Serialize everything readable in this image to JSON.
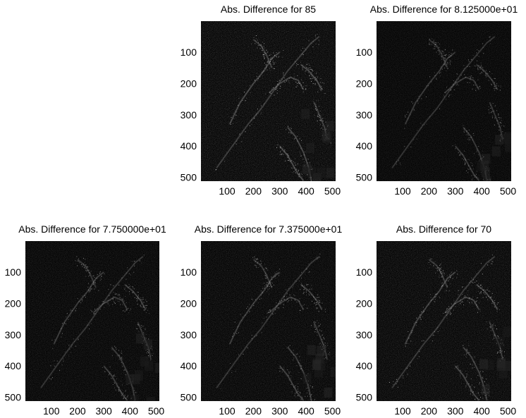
{
  "chart_data": [
    {
      "type": "heatmap",
      "title": "Abs. Difference for 85",
      "x_ticks": [
        100,
        200,
        300,
        400,
        500
      ],
      "y_ticks": [
        100,
        200,
        300,
        400,
        500
      ],
      "xlim": [
        1,
        512
      ],
      "ylim": [
        1,
        512
      ],
      "colormap": "gray",
      "noise_level": 0.55,
      "edge_level": 0.85
    },
    {
      "type": "heatmap",
      "title": "Abs. Difference for 8.125000e+01",
      "x_ticks": [
        100,
        200,
        300,
        400,
        500
      ],
      "y_ticks": [
        100,
        200,
        300,
        400,
        500
      ],
      "xlim": [
        1,
        512
      ],
      "ylim": [
        1,
        512
      ],
      "colormap": "gray",
      "noise_level": 0.35,
      "edge_level": 0.55
    },
    {
      "type": "heatmap",
      "title": "Abs. Difference for 7.750000e+01",
      "x_ticks": [
        100,
        200,
        300,
        400,
        500
      ],
      "y_ticks": [
        100,
        200,
        300,
        400,
        500
      ],
      "xlim": [
        1,
        512
      ],
      "ylim": [
        1,
        512
      ],
      "colormap": "gray",
      "noise_level": 0.4,
      "edge_level": 0.6
    },
    {
      "type": "heatmap",
      "title": "Abs. Difference for 7.375000e+01",
      "x_ticks": [
        100,
        200,
        300,
        400,
        500
      ],
      "y_ticks": [
        100,
        200,
        300,
        400,
        500
      ],
      "xlim": [
        1,
        512
      ],
      "ylim": [
        1,
        512
      ],
      "colormap": "gray",
      "noise_level": 0.45,
      "edge_level": 0.65
    },
    {
      "type": "heatmap",
      "title": "Abs. Difference for 70",
      "x_ticks": [
        100,
        200,
        300,
        400,
        500
      ],
      "y_ticks": [
        100,
        200,
        300,
        400,
        500
      ],
      "xlim": [
        1,
        512
      ],
      "ylim": [
        1,
        512
      ],
      "colormap": "gray",
      "noise_level": 0.5,
      "edge_level": 0.75
    }
  ]
}
